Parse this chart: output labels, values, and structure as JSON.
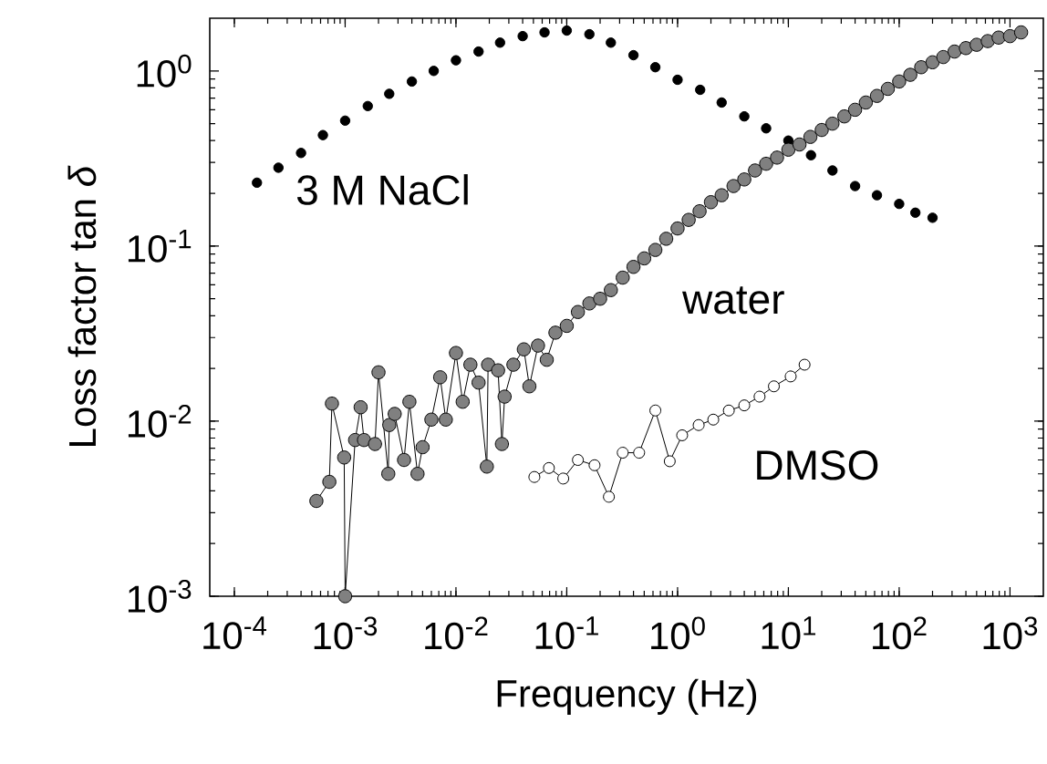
{
  "chart_data": {
    "type": "line",
    "xlabel": "Frequency (Hz)",
    "ylabel": "Loss factor tan *δ*",
    "log": "xy",
    "marker": "circle",
    "xlim": [
      6e-05,
      2000
    ],
    "ylim": [
      0.001,
      2
    ],
    "xticks": [
      {
        "value": 0.0001,
        "label": "10$^{-4}$"
      },
      {
        "value": 0.001,
        "label": "10$^{-3}$"
      },
      {
        "value": 0.01,
        "label": "10$^{-2}$"
      },
      {
        "value": 0.1,
        "label": "10$^{-1}$"
      },
      {
        "value": 1,
        "label": "10$^{0}$"
      },
      {
        "value": 10,
        "label": "10$^{1}$"
      },
      {
        "value": 100,
        "label": "10$^{2}$"
      },
      {
        "value": 1000,
        "label": "10$^{3}$"
      }
    ],
    "yticks": [
      {
        "value": 0.001,
        "label": "10$^{-3}$"
      },
      {
        "value": 0.01,
        "label": "10$^{-2}$"
      },
      {
        "value": 0.1,
        "label": "10$^{-1}$"
      },
      {
        "value": 1,
        "label": "10$^{0}$"
      }
    ],
    "series": [
      {
        "name": "3 M NaCl",
        "type": "scatter",
        "color": "#000000",
        "x": [
          0.00016,
          0.00025,
          0.0004,
          0.00063,
          0.001,
          0.0016,
          0.0025,
          0.004,
          0.0063,
          0.01,
          0.016,
          0.025,
          0.04,
          0.063,
          0.1,
          0.16,
          0.25,
          0.4,
          0.63,
          1,
          1.6,
          2.5,
          4,
          6.3,
          10,
          16,
          25,
          40,
          63,
          100,
          140,
          200
        ],
        "values": [
          0.23,
          0.28,
          0.34,
          0.43,
          0.52,
          0.63,
          0.74,
          0.87,
          1.0,
          1.15,
          1.29,
          1.45,
          1.58,
          1.66,
          1.7,
          1.62,
          1.45,
          1.23,
          1.05,
          0.89,
          0.78,
          0.66,
          0.55,
          0.47,
          0.4,
          0.33,
          0.27,
          0.22,
          0.195,
          0.174,
          0.155,
          0.145
        ]
      },
      {
        "name": "water",
        "color": "#808080",
        "x": [
          0.00055,
          0.00072,
          0.00076,
          0.00098,
          0.001,
          0.00123,
          0.00138,
          0.00148,
          0.00186,
          0.002,
          0.00245,
          0.0025,
          0.0028,
          0.0034,
          0.0038,
          0.0045,
          0.005,
          0.006,
          0.0072,
          0.0081,
          0.01,
          0.0115,
          0.0135,
          0.016,
          0.019,
          0.0195,
          0.024,
          0.026,
          0.0275,
          0.033,
          0.041,
          0.046,
          0.055,
          0.066,
          0.079,
          0.1,
          0.126,
          0.16,
          0.2,
          0.25,
          0.32,
          0.4,
          0.5,
          0.63,
          0.79,
          1,
          1.26,
          1.58,
          2.0,
          2.5,
          3.2,
          4.0,
          5.0,
          6.3,
          7.9,
          10,
          12.6,
          15.8,
          20,
          25,
          32,
          40,
          50,
          63,
          79,
          100,
          126,
          158,
          200,
          250,
          316,
          400,
          500,
          630,
          790,
          1000,
          1260
        ],
        "values": [
          0.0035,
          0.0045,
          0.0126,
          0.0062,
          0.001,
          0.0078,
          0.012,
          0.0078,
          0.0074,
          0.019,
          0.005,
          0.0095,
          0.011,
          0.006,
          0.0129,
          0.005,
          0.0071,
          0.0102,
          0.0178,
          0.0102,
          0.0245,
          0.0129,
          0.021,
          0.0166,
          0.0055,
          0.021,
          0.0195,
          0.0074,
          0.0138,
          0.021,
          0.0257,
          0.0158,
          0.027,
          0.0224,
          0.032,
          0.035,
          0.042,
          0.047,
          0.05,
          0.056,
          0.066,
          0.076,
          0.085,
          0.095,
          0.11,
          0.126,
          0.141,
          0.158,
          0.178,
          0.195,
          0.22,
          0.24,
          0.27,
          0.295,
          0.32,
          0.355,
          0.38,
          0.42,
          0.46,
          0.5,
          0.55,
          0.6,
          0.66,
          0.72,
          0.79,
          0.87,
          0.95,
          1.05,
          1.12,
          1.2,
          1.29,
          1.35,
          1.41,
          1.48,
          1.55,
          1.58,
          1.66
        ]
      },
      {
        "name": "DMSO",
        "color": "#ffffff",
        "x": [
          0.051,
          0.069,
          0.093,
          0.126,
          0.178,
          0.24,
          0.32,
          0.45,
          0.63,
          0.85,
          1.1,
          1.55,
          2.1,
          2.9,
          4.0,
          5.5,
          7.4,
          10.5,
          14
        ],
        "values": [
          0.0048,
          0.0054,
          0.0047,
          0.006,
          0.0056,
          0.0037,
          0.0066,
          0.0066,
          0.0115,
          0.0059,
          0.0083,
          0.0095,
          0.0102,
          0.0115,
          0.0123,
          0.0138,
          0.0158,
          0.018,
          0.021
        ]
      }
    ]
  }
}
